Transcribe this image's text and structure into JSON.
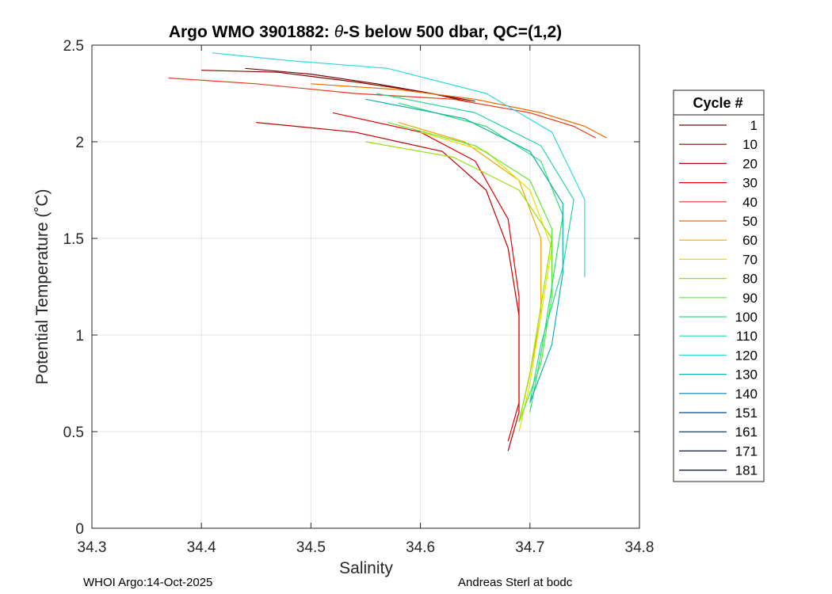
{
  "chart_data": {
    "type": "line",
    "title_prefix": "Argo WMO 3901882: ",
    "title_theta": "θ",
    "title_suffix": "-S below 500 dbar,  QC=(1,2)",
    "xlabel": "Salinity",
    "ylabel": "Potential Temperature (˚C)",
    "xlim": [
      34.3,
      34.8
    ],
    "ylim": [
      0,
      2.5
    ],
    "x_ticks": [
      "34.3",
      "34.4",
      "34.5",
      "34.6",
      "34.7",
      "34.8"
    ],
    "y_ticks": [
      "0",
      "0.5",
      "1",
      "1.5",
      "2",
      "2.5"
    ],
    "grid": true,
    "legend_title": "Cycle #",
    "legend_position": "outside-right",
    "series": [
      {
        "name": "1",
        "color": "#6e0a0a",
        "salinity": [
          34.44,
          34.5,
          34.56,
          34.61,
          34.65
        ],
        "theta": [
          2.38,
          2.35,
          2.3,
          2.25,
          2.2
        ]
      },
      {
        "name": "10",
        "color": "#8b0000",
        "salinity": [
          34.4,
          34.47,
          34.54,
          34.6,
          34.65
        ],
        "theta": [
          2.37,
          2.36,
          2.31,
          2.26,
          2.21
        ]
      },
      {
        "name": "20",
        "color": "#c00000",
        "salinity": [
          34.45,
          34.54,
          34.62,
          34.66,
          34.68,
          34.69,
          34.69,
          34.69,
          34.68
        ],
        "theta": [
          2.1,
          2.05,
          1.95,
          1.75,
          1.45,
          1.1,
          0.8,
          0.6,
          0.4
        ]
      },
      {
        "name": "30",
        "color": "#e60000",
        "salinity": [
          34.52,
          34.6,
          34.65,
          34.68,
          34.69,
          34.69,
          34.69,
          34.68
        ],
        "theta": [
          2.15,
          2.05,
          1.9,
          1.6,
          1.2,
          0.9,
          0.65,
          0.45
        ]
      },
      {
        "name": "40",
        "color": "#e83a1a",
        "salinity": [
          34.37,
          34.45,
          34.54,
          34.63,
          34.7,
          34.74,
          34.76
        ],
        "theta": [
          2.33,
          2.3,
          2.25,
          2.22,
          2.15,
          2.08,
          2.02
        ]
      },
      {
        "name": "50",
        "color": "#ee6a00",
        "salinity": [
          34.5,
          34.58,
          34.65,
          34.71,
          34.75,
          34.77
        ],
        "theta": [
          2.3,
          2.27,
          2.22,
          2.15,
          2.08,
          2.02
        ]
      },
      {
        "name": "60",
        "color": "#f0a800",
        "salinity": [
          34.58,
          34.64,
          34.69,
          34.71,
          34.71,
          34.7,
          34.69
        ],
        "theta": [
          2.1,
          2.0,
          1.8,
          1.5,
          1.1,
          0.8,
          0.55
        ]
      },
      {
        "name": "70",
        "color": "#e8e000",
        "salinity": [
          34.6,
          34.66,
          34.7,
          34.72,
          34.71,
          34.7,
          34.69
        ],
        "theta": [
          2.05,
          1.95,
          1.75,
          1.45,
          1.1,
          0.75,
          0.5
        ]
      },
      {
        "name": "80",
        "color": "#9ae000",
        "salinity": [
          34.55,
          34.63,
          34.69,
          34.72,
          34.71,
          34.7,
          34.69
        ],
        "theta": [
          2.0,
          1.92,
          1.75,
          1.5,
          1.15,
          0.8,
          0.55
        ]
      },
      {
        "name": "90",
        "color": "#5ce830",
        "salinity": [
          34.57,
          34.65,
          34.7,
          34.72,
          34.72,
          34.71,
          34.69
        ],
        "theta": [
          2.1,
          1.98,
          1.8,
          1.55,
          1.2,
          0.85,
          0.55
        ]
      },
      {
        "name": "100",
        "color": "#30e070",
        "salinity": [
          34.58,
          34.66,
          34.71,
          34.73,
          34.72,
          34.71,
          34.7
        ],
        "theta": [
          2.2,
          2.08,
          1.9,
          1.62,
          1.25,
          0.9,
          0.6
        ]
      },
      {
        "name": "110",
        "color": "#20d8a0",
        "salinity": [
          34.56,
          34.65,
          34.71,
          34.74,
          34.73,
          34.71,
          34.7
        ],
        "theta": [
          2.25,
          2.15,
          1.98,
          1.7,
          1.35,
          0.95,
          0.65
        ]
      },
      {
        "name": "120",
        "color": "#30d8e0",
        "salinity": [
          34.41,
          34.48,
          34.57,
          34.66,
          34.72,
          34.75,
          34.75
        ],
        "theta": [
          2.46,
          2.42,
          2.38,
          2.25,
          2.05,
          1.7,
          1.3
        ]
      },
      {
        "name": "130",
        "color": "#10b0b0",
        "salinity": [
          34.55,
          34.64,
          34.7,
          34.73,
          34.73,
          34.72,
          34.7
        ],
        "theta": [
          2.22,
          2.12,
          1.95,
          1.68,
          1.32,
          0.95,
          0.65
        ]
      },
      {
        "name": "140",
        "color": "#0080b0",
        "salinity": [],
        "theta": []
      },
      {
        "name": "151",
        "color": "#004a8c",
        "salinity": [],
        "theta": []
      },
      {
        "name": "161",
        "color": "#00205a",
        "salinity": [],
        "theta": []
      },
      {
        "name": "171",
        "color": "#101840",
        "salinity": [],
        "theta": []
      },
      {
        "name": "181",
        "color": "#000a30",
        "salinity": [],
        "theta": []
      }
    ]
  },
  "footer": {
    "left": "WHOI Argo:14-Oct-2025",
    "right": "Andreas Sterl at bodc"
  }
}
